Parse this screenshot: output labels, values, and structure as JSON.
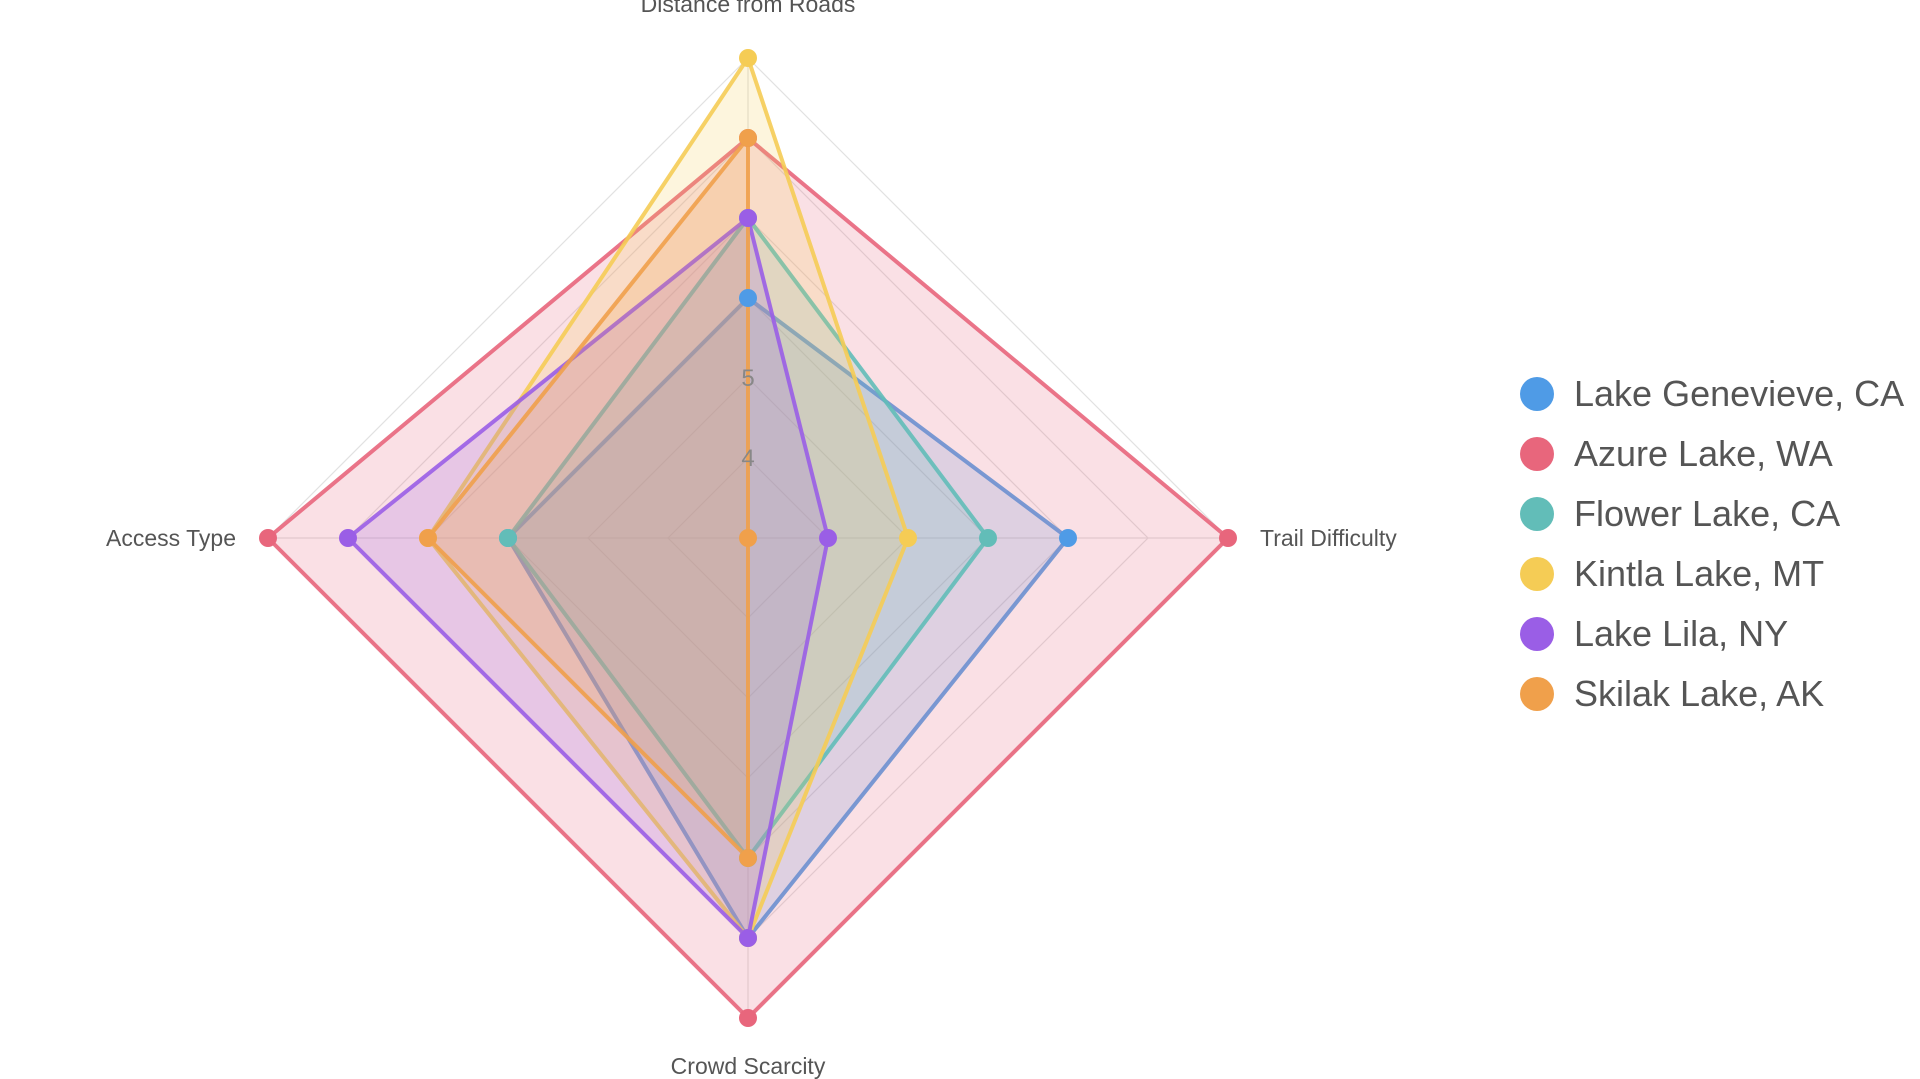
{
  "chart_data": {
    "type": "radar",
    "axes": [
      "Distance from Roads",
      "Trail Difficulty",
      "Crowd Scarcity",
      "Access Type"
    ],
    "range": [
      3,
      9
    ],
    "ticks": [
      4,
      5
    ],
    "grid": true,
    "legend_position": "right",
    "series": [
      {
        "name": "Lake Genevieve, CA",
        "color": "#4f9be6",
        "values": [
          6,
          7,
          8,
          6
        ]
      },
      {
        "name": "Azure Lake, WA",
        "color": "#e8667c",
        "values": [
          8,
          9,
          9,
          9
        ]
      },
      {
        "name": "Flower Lake, CA",
        "color": "#62bdb8",
        "values": [
          7,
          6,
          7,
          6
        ]
      },
      {
        "name": "Kintla Lake, MT",
        "color": "#f5cc55",
        "values": [
          9,
          5,
          8,
          7
        ]
      },
      {
        "name": "Lake Lila, NY",
        "color": "#9a5ee6",
        "values": [
          7,
          4,
          8,
          8
        ]
      },
      {
        "name": "Skilak Lake, AK",
        "color": "#f0a04b",
        "values": [
          8,
          3,
          7,
          7
        ]
      }
    ]
  }
}
